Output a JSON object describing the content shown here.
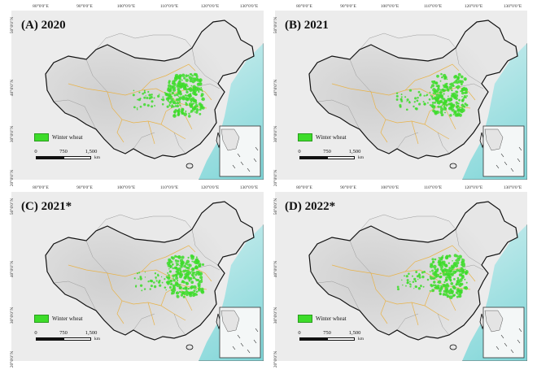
{
  "longitude_ticks": [
    "80°0'0\"E",
    "90°0'0\"E",
    "100°0'0\"E",
    "110°0'0\"E",
    "120°0'0\"E",
    "130°0'0\"E"
  ],
  "latitude_ticks": [
    "50°0'0\"N",
    "40°0'0\"N",
    "30°0'0\"N",
    "20°0'0\"N"
  ],
  "legend": {
    "label": "Winter wheat",
    "color": "#3ddc2a"
  },
  "scalebar": {
    "labels": [
      "0",
      "750",
      "1,500"
    ],
    "unit": "km"
  },
  "panels": [
    {
      "title": "(A) 2020"
    },
    {
      "title": "(B) 2021"
    },
    {
      "title": "(C) 2021*"
    },
    {
      "title": "(D) 2022*"
    }
  ],
  "colors": {
    "sea": "#7fd6d8",
    "land": "#e6e6e6",
    "province_border": "#e8b34a",
    "country_border": "#111111",
    "wheat": "#3ddc2a"
  }
}
